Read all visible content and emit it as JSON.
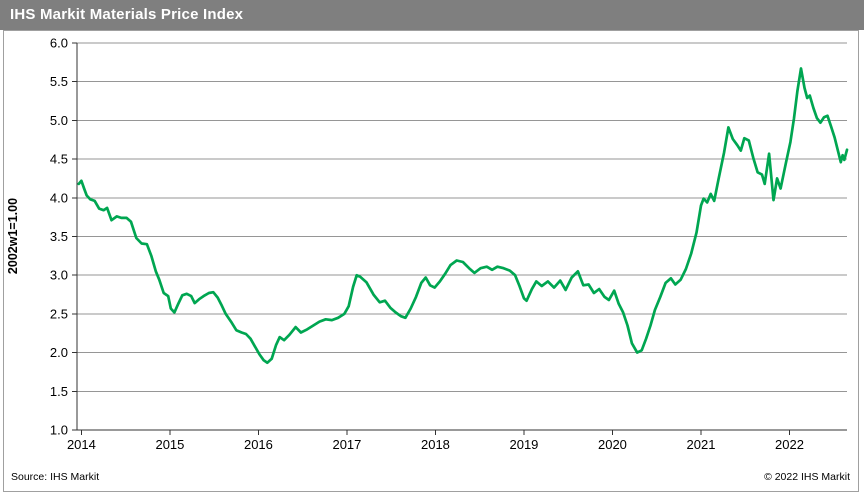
{
  "header": {
    "title": "IHS Markit Materials Price Index"
  },
  "footer": {
    "source": "Source: IHS Markit",
    "copyright": "© 2022 IHS Markit"
  },
  "colors": {
    "header_bg": "#7f7f7f",
    "header_text": "#ffffff",
    "line": "#00a651",
    "grid": "#969696",
    "axis": "#333333",
    "panel_border": "#a0a0a0",
    "text": "#000000"
  },
  "chart_data": {
    "type": "line",
    "title": "IHS Markit Materials Price Index",
    "xlabel": "",
    "ylabel": "2002w1=1.00",
    "x_range": [
      2013.95,
      2022.65
    ],
    "y_range": [
      1.0,
      6.0
    ],
    "x_ticks": [
      2014,
      2015,
      2016,
      2017,
      2018,
      2019,
      2020,
      2021,
      2022
    ],
    "y_ticks": [
      1.0,
      1.5,
      2.0,
      2.5,
      3.0,
      3.5,
      4.0,
      4.5,
      5.0,
      5.5,
      6.0
    ],
    "grid": "horizontal",
    "legend": "none",
    "series": [
      {
        "name": "IHS Markit Materials Price Index",
        "color": "#00a651",
        "points": [
          [
            2013.97,
            4.18
          ],
          [
            2014.0,
            4.22
          ],
          [
            2014.03,
            4.12
          ],
          [
            2014.06,
            4.03
          ],
          [
            2014.1,
            3.98
          ],
          [
            2014.15,
            3.96
          ],
          [
            2014.2,
            3.86
          ],
          [
            2014.25,
            3.84
          ],
          [
            2014.29,
            3.87
          ],
          [
            2014.34,
            3.71
          ],
          [
            2014.4,
            3.76
          ],
          [
            2014.45,
            3.74
          ],
          [
            2014.51,
            3.74
          ],
          [
            2014.56,
            3.69
          ],
          [
            2014.62,
            3.48
          ],
          [
            2014.68,
            3.41
          ],
          [
            2014.74,
            3.4
          ],
          [
            2014.79,
            3.25
          ],
          [
            2014.84,
            3.05
          ],
          [
            2014.88,
            2.94
          ],
          [
            2014.93,
            2.77
          ],
          [
            2014.98,
            2.73
          ],
          [
            2015.01,
            2.57
          ],
          [
            2015.05,
            2.52
          ],
          [
            2015.09,
            2.62
          ],
          [
            2015.14,
            2.74
          ],
          [
            2015.19,
            2.76
          ],
          [
            2015.24,
            2.73
          ],
          [
            2015.28,
            2.64
          ],
          [
            2015.33,
            2.69
          ],
          [
            2015.38,
            2.73
          ],
          [
            2015.44,
            2.77
          ],
          [
            2015.49,
            2.78
          ],
          [
            2015.54,
            2.71
          ],
          [
            2015.58,
            2.62
          ],
          [
            2015.63,
            2.5
          ],
          [
            2015.69,
            2.4
          ],
          [
            2015.75,
            2.29
          ],
          [
            2015.81,
            2.26
          ],
          [
            2015.86,
            2.24
          ],
          [
            2015.91,
            2.18
          ],
          [
            2015.96,
            2.08
          ],
          [
            2016.01,
            1.98
          ],
          [
            2016.06,
            1.9
          ],
          [
            2016.1,
            1.87
          ],
          [
            2016.15,
            1.92
          ],
          [
            2016.2,
            2.1
          ],
          [
            2016.24,
            2.2
          ],
          [
            2016.29,
            2.16
          ],
          [
            2016.35,
            2.23
          ],
          [
            2016.42,
            2.33
          ],
          [
            2016.48,
            2.26
          ],
          [
            2016.55,
            2.3
          ],
          [
            2016.62,
            2.35
          ],
          [
            2016.69,
            2.4
          ],
          [
            2016.76,
            2.43
          ],
          [
            2016.83,
            2.42
          ],
          [
            2016.9,
            2.45
          ],
          [
            2016.97,
            2.5
          ],
          [
            2017.02,
            2.6
          ],
          [
            2017.07,
            2.85
          ],
          [
            2017.11,
            3.0
          ],
          [
            2017.15,
            2.98
          ],
          [
            2017.22,
            2.91
          ],
          [
            2017.3,
            2.75
          ],
          [
            2017.37,
            2.65
          ],
          [
            2017.43,
            2.67
          ],
          [
            2017.49,
            2.58
          ],
          [
            2017.55,
            2.52
          ],
          [
            2017.61,
            2.47
          ],
          [
            2017.66,
            2.45
          ],
          [
            2017.72,
            2.57
          ],
          [
            2017.78,
            2.72
          ],
          [
            2017.84,
            2.9
          ],
          [
            2017.89,
            2.97
          ],
          [
            2017.94,
            2.87
          ],
          [
            2017.99,
            2.84
          ],
          [
            2018.05,
            2.92
          ],
          [
            2018.11,
            3.02
          ],
          [
            2018.17,
            3.13
          ],
          [
            2018.24,
            3.19
          ],
          [
            2018.31,
            3.17
          ],
          [
            2018.38,
            3.09
          ],
          [
            2018.44,
            3.03
          ],
          [
            2018.51,
            3.09
          ],
          [
            2018.58,
            3.11
          ],
          [
            2018.64,
            3.07
          ],
          [
            2018.7,
            3.11
          ],
          [
            2018.77,
            3.09
          ],
          [
            2018.84,
            3.06
          ],
          [
            2018.9,
            3.0
          ],
          [
            2018.95,
            2.86
          ],
          [
            2019.0,
            2.7
          ],
          [
            2019.03,
            2.67
          ],
          [
            2019.09,
            2.82
          ],
          [
            2019.14,
            2.92
          ],
          [
            2019.2,
            2.86
          ],
          [
            2019.27,
            2.92
          ],
          [
            2019.34,
            2.84
          ],
          [
            2019.41,
            2.93
          ],
          [
            2019.47,
            2.81
          ],
          [
            2019.54,
            2.97
          ],
          [
            2019.61,
            3.05
          ],
          [
            2019.67,
            2.87
          ],
          [
            2019.73,
            2.88
          ],
          [
            2019.79,
            2.77
          ],
          [
            2019.85,
            2.82
          ],
          [
            2019.91,
            2.72
          ],
          [
            2019.96,
            2.68
          ],
          [
            2020.02,
            2.8
          ],
          [
            2020.07,
            2.63
          ],
          [
            2020.12,
            2.52
          ],
          [
            2020.17,
            2.35
          ],
          [
            2020.22,
            2.12
          ],
          [
            2020.28,
            2.0
          ],
          [
            2020.33,
            2.03
          ],
          [
            2020.38,
            2.18
          ],
          [
            2020.43,
            2.35
          ],
          [
            2020.48,
            2.55
          ],
          [
            2020.54,
            2.72
          ],
          [
            2020.6,
            2.9
          ],
          [
            2020.66,
            2.96
          ],
          [
            2020.71,
            2.88
          ],
          [
            2020.77,
            2.94
          ],
          [
            2020.83,
            3.08
          ],
          [
            2020.89,
            3.28
          ],
          [
            2020.95,
            3.55
          ],
          [
            2021.0,
            3.9
          ],
          [
            2021.03,
            3.99
          ],
          [
            2021.07,
            3.94
          ],
          [
            2021.11,
            4.05
          ],
          [
            2021.15,
            3.96
          ],
          [
            2021.2,
            4.25
          ],
          [
            2021.26,
            4.58
          ],
          [
            2021.31,
            4.91
          ],
          [
            2021.36,
            4.76
          ],
          [
            2021.41,
            4.68
          ],
          [
            2021.45,
            4.61
          ],
          [
            2021.49,
            4.77
          ],
          [
            2021.54,
            4.74
          ],
          [
            2021.59,
            4.52
          ],
          [
            2021.64,
            4.33
          ],
          [
            2021.69,
            4.3
          ],
          [
            2021.72,
            4.18
          ],
          [
            2021.77,
            4.57
          ],
          [
            2021.82,
            3.97
          ],
          [
            2021.86,
            4.25
          ],
          [
            2021.9,
            4.12
          ],
          [
            2021.96,
            4.45
          ],
          [
            2022.01,
            4.72
          ],
          [
            2022.05,
            5.02
          ],
          [
            2022.09,
            5.38
          ],
          [
            2022.13,
            5.67
          ],
          [
            2022.17,
            5.42
          ],
          [
            2022.2,
            5.29
          ],
          [
            2022.23,
            5.32
          ],
          [
            2022.27,
            5.16
          ],
          [
            2022.31,
            5.03
          ],
          [
            2022.35,
            4.97
          ],
          [
            2022.39,
            5.04
          ],
          [
            2022.43,
            5.06
          ],
          [
            2022.47,
            4.92
          ],
          [
            2022.51,
            4.78
          ],
          [
            2022.55,
            4.6
          ],
          [
            2022.58,
            4.46
          ],
          [
            2022.6,
            4.55
          ],
          [
            2022.62,
            4.49
          ],
          [
            2022.65,
            4.62
          ]
        ]
      }
    ]
  }
}
